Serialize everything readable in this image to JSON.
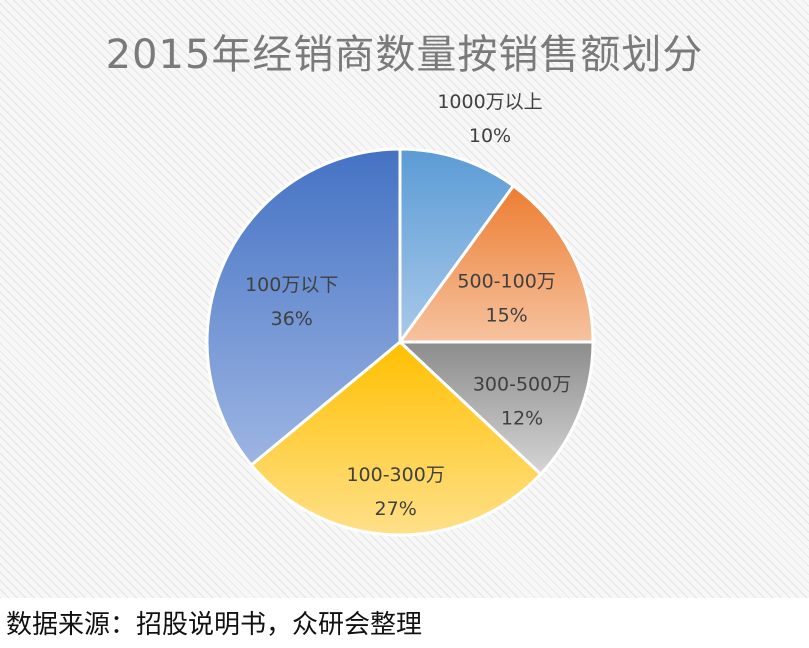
{
  "chart_data": {
    "type": "pie",
    "title": "2015年经销商数量按销售额划分",
    "slices": [
      {
        "label": "1000万以上",
        "value": 10,
        "value_label": "10%",
        "color_dark": "#5b9bd5",
        "color_light": "#a9c9ea"
      },
      {
        "label": "500-100万",
        "value": 15,
        "value_label": "15%",
        "color_dark": "#ed7d31",
        "color_light": "#f6c3a0"
      },
      {
        "label": "300-500万",
        "value": 12,
        "value_label": "12%",
        "color_dark": "#8c8c8c",
        "color_light": "#d5d5d5"
      },
      {
        "label": "100-300万",
        "value": 27,
        "value_label": "27%",
        "color_dark": "#ffc000",
        "color_light": "#ffe08a"
      },
      {
        "label": "100万以下",
        "value": 36,
        "value_label": "36%",
        "color_dark": "#4472c4",
        "color_light": "#9db5e3"
      }
    ],
    "start_angle_deg": 0,
    "direction": "clockwise",
    "legend": "none"
  },
  "footer": {
    "source": "数据来源：招股说明书，众研会整理"
  }
}
